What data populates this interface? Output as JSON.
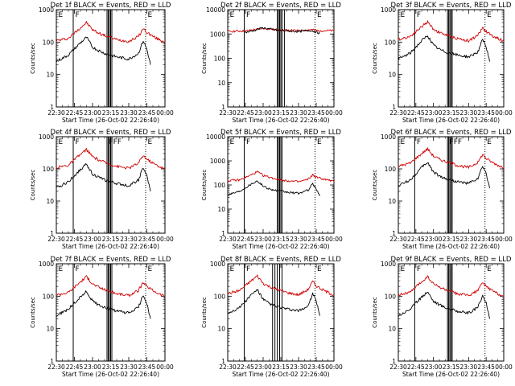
{
  "chart_data": [
    {
      "title": "Det 1f BLACK = Events, RED = LLD",
      "type": "line",
      "xlabel": "Start Time (26-Oct-02 22:26:40)",
      "ylabel": "Counts/sec",
      "yscale": "log",
      "ylim": [
        1,
        1000
      ],
      "xlim": [
        "22:30",
        "00:00"
      ],
      "y_tick_labels": [
        "1",
        "10",
        "100",
        "1000"
      ],
      "x_tick_labels": [
        "22:30",
        "22:45",
        "23:00",
        "23:15",
        "23:30",
        "23:45",
        "00:00"
      ],
      "flags": [
        {
          "text": "E",
          "t": "22:31"
        },
        {
          "text": "F",
          "t": "22:45"
        },
        {
          "text": "E",
          "t": "23:45"
        }
      ],
      "vlines_solid": [
        "22:44",
        "23:12",
        "23:13",
        "23:14",
        "23:15",
        "23:16"
      ],
      "vlines_dotted": [
        "23:44"
      ],
      "series": [
        {
          "color": "#d00000",
          "x": [
            "22:30",
            "22:40",
            "22:50",
            "22:55",
            "23:00",
            "23:05",
            "23:10",
            "23:20",
            "23:30",
            "23:38",
            "23:42",
            "23:45",
            "23:50",
            "23:55",
            "00:00"
          ],
          "y": [
            110,
            130,
            280,
            400,
            240,
            190,
            160,
            120,
            105,
            150,
            260,
            200,
            150,
            120,
            100
          ]
        },
        {
          "color": "#000000",
          "x": [
            "22:30",
            "22:40",
            "22:50",
            "22:55",
            "23:00",
            "23:05",
            "23:10",
            "23:20",
            "23:30",
            "23:38",
            "23:42",
            "23:45",
            "23:48"
          ],
          "y": [
            25,
            40,
            95,
            140,
            70,
            55,
            45,
            35,
            30,
            45,
            110,
            60,
            20
          ]
        }
      ]
    },
    {
      "title": "Det 2f BLACK = Events, RED = LLD",
      "type": "line",
      "xlabel": "Start Time (26-Oct-02 22:26:40)",
      "ylabel": "Counts/sec",
      "yscale": "log",
      "ylim": [
        1,
        10000
      ],
      "xlim": [
        "22:30",
        "00:00"
      ],
      "y_tick_labels": [
        "1",
        "10",
        "100",
        "1000",
        "10000"
      ],
      "x_tick_labels": [
        "22:30",
        "22:45",
        "23:00",
        "23:15",
        "23:30",
        "23:45",
        "00:00"
      ],
      "flags": [
        {
          "text": "E",
          "t": "22:31"
        },
        {
          "text": "F",
          "t": "22:45"
        },
        {
          "text": "E",
          "t": "23:45"
        }
      ],
      "vlines_solid": [
        "22:44",
        "23:12",
        "23:13",
        "23:14",
        "23:15",
        "23:16",
        "23:18"
      ],
      "vlines_dotted": [
        "23:44"
      ],
      "series": [
        {
          "color": "#d00000",
          "x": [
            "22:30",
            "22:45",
            "23:00",
            "23:10",
            "23:30",
            "23:40",
            "23:45",
            "00:00"
          ],
          "y": [
            1300,
            1320,
            1700,
            1500,
            1350,
            1500,
            1400,
            1350
          ]
        },
        {
          "color": "#000000",
          "x": [
            "22:44",
            "22:50",
            "23:00",
            "23:10",
            "23:30",
            "23:40",
            "23:45",
            "23:48"
          ],
          "y": [
            1150,
            1300,
            1800,
            1450,
            1250,
            1400,
            1200,
            1050
          ]
        }
      ]
    },
    {
      "title": "Det 3f BLACK = Events, RED = LLD",
      "type": "line",
      "xlabel": "Start Time (26-Oct-02 22:26:40)",
      "ylabel": "Counts/sec",
      "yscale": "log",
      "ylim": [
        1,
        1000
      ],
      "xlim": [
        "22:30",
        "00:00"
      ],
      "y_tick_labels": [
        "1",
        "10",
        "100",
        "1000"
      ],
      "x_tick_labels": [
        "22:30",
        "22:45",
        "23:00",
        "23:15",
        "23:30",
        "23:45",
        "00:00"
      ],
      "flags": [
        {
          "text": "E",
          "t": "22:31"
        },
        {
          "text": "F",
          "t": "22:45"
        },
        {
          "text": "E",
          "t": "23:45"
        }
      ],
      "vlines_solid": [
        "22:44",
        "23:12",
        "23:13",
        "23:14",
        "23:15",
        "23:16"
      ],
      "vlines_dotted": [
        "23:44"
      ],
      "series": [
        {
          "color": "#d00000",
          "x": [
            "22:30",
            "22:40",
            "22:50",
            "22:55",
            "23:00",
            "23:05",
            "23:10",
            "23:20",
            "23:30",
            "23:38",
            "23:42",
            "23:45",
            "23:50",
            "23:55",
            "00:00"
          ],
          "y": [
            120,
            150,
            300,
            420,
            250,
            200,
            170,
            130,
            110,
            160,
            280,
            210,
            160,
            130,
            110
          ]
        },
        {
          "color": "#000000",
          "x": [
            "22:30",
            "22:40",
            "22:50",
            "22:55",
            "23:00",
            "23:05",
            "23:10",
            "23:20",
            "23:30",
            "23:38",
            "23:42",
            "23:45",
            "23:48"
          ],
          "y": [
            30,
            45,
            110,
            160,
            80,
            60,
            50,
            40,
            35,
            50,
            120,
            70,
            25
          ]
        }
      ]
    },
    {
      "title": "Det 4f BLACK = Events, RED = LLD",
      "type": "line",
      "xlabel": "Start Time (26-Oct-02 22:26:40)",
      "ylabel": "Counts/sec",
      "yscale": "log",
      "ylim": [
        1,
        1000
      ],
      "xlim": [
        "22:30",
        "00:00"
      ],
      "y_tick_labels": [
        "1",
        "10",
        "100",
        "1000"
      ],
      "x_tick_labels": [
        "22:30",
        "22:45",
        "23:00",
        "23:15",
        "23:30",
        "23:45",
        "00:00"
      ],
      "flags": [
        {
          "text": "E",
          "t": "22:31"
        },
        {
          "text": "F",
          "t": "22:45"
        },
        {
          "text": "FFF",
          "t": "23:13"
        },
        {
          "text": "E",
          "t": "23:45"
        }
      ],
      "vlines_solid": [
        "22:44",
        "23:12",
        "23:13",
        "23:14",
        "23:15",
        "23:16"
      ],
      "vlines_dotted": [
        "23:44"
      ],
      "series": [
        {
          "color": "#d00000",
          "x": [
            "22:30",
            "22:40",
            "22:50",
            "22:55",
            "23:00",
            "23:05",
            "23:10",
            "23:20",
            "23:30",
            "23:38",
            "23:42",
            "23:45",
            "23:50",
            "23:55",
            "00:00"
          ],
          "y": [
            110,
            130,
            280,
            400,
            240,
            190,
            160,
            120,
            105,
            150,
            260,
            200,
            150,
            120,
            100
          ]
        },
        {
          "color": "#000000",
          "x": [
            "22:30",
            "22:40",
            "22:50",
            "22:55",
            "23:00",
            "23:05",
            "23:10",
            "23:20",
            "23:30",
            "23:38",
            "23:42",
            "23:45",
            "23:48"
          ],
          "y": [
            25,
            40,
            95,
            140,
            70,
            55,
            45,
            35,
            30,
            45,
            110,
            60,
            20
          ]
        }
      ]
    },
    {
      "title": "Det 5f BLACK = Events, RED = LLD",
      "type": "line",
      "xlabel": "Start Time (26-Oct-02 22:26:40)",
      "ylabel": "Counts/sec",
      "yscale": "log",
      "ylim": [
        1,
        10000
      ],
      "xlim": [
        "22:30",
        "00:00"
      ],
      "y_tick_labels": [
        "1",
        "10",
        "100",
        "1000",
        "10000"
      ],
      "x_tick_labels": [
        "22:30",
        "22:45",
        "23:00",
        "23:15",
        "23:30",
        "23:45",
        "00:00"
      ],
      "flags": [
        {
          "text": "E",
          "t": "22:31"
        },
        {
          "text": "F",
          "t": "22:45"
        },
        {
          "text": "E",
          "t": "23:45"
        }
      ],
      "vlines_solid": [
        "22:44",
        "23:12",
        "23:13",
        "23:14",
        "23:15",
        "23:16"
      ],
      "vlines_dotted": [
        "23:44"
      ],
      "series": [
        {
          "color": "#d00000",
          "x": [
            "22:30",
            "22:40",
            "22:50",
            "22:55",
            "23:00",
            "23:05",
            "23:10",
            "23:20",
            "23:30",
            "23:38",
            "23:42",
            "23:45",
            "23:50",
            "23:55",
            "00:00"
          ],
          "y": [
            150,
            160,
            260,
            350,
            250,
            210,
            180,
            150,
            135,
            170,
            260,
            210,
            180,
            160,
            140
          ]
        },
        {
          "color": "#000000",
          "x": [
            "22:30",
            "22:40",
            "22:50",
            "22:55",
            "23:00",
            "23:05",
            "23:10",
            "23:20",
            "23:30",
            "23:38",
            "23:42",
            "23:45",
            "23:48"
          ],
          "y": [
            40,
            55,
            110,
            150,
            90,
            70,
            60,
            50,
            45,
            60,
            110,
            70,
            35
          ]
        }
      ]
    },
    {
      "title": "Det 6f BLACK = Events, RED = LLD",
      "type": "line",
      "xlabel": "Start Time (26-Oct-02 22:26:40)",
      "ylabel": "Counts/sec",
      "yscale": "log",
      "ylim": [
        1,
        1000
      ],
      "xlim": [
        "22:30",
        "00:00"
      ],
      "y_tick_labels": [
        "1",
        "10",
        "100",
        "1000"
      ],
      "x_tick_labels": [
        "22:30",
        "22:45",
        "23:00",
        "23:15",
        "23:30",
        "23:45",
        "00:00"
      ],
      "flags": [
        {
          "text": "E",
          "t": "22:31"
        },
        {
          "text": "F",
          "t": "22:45"
        },
        {
          "text": "FFF",
          "t": "23:13"
        },
        {
          "text": "E",
          "t": "23:45"
        }
      ],
      "vlines_solid": [
        "22:44",
        "23:12",
        "23:13",
        "23:14",
        "23:15",
        "23:16"
      ],
      "vlines_dotted": [
        "23:44"
      ],
      "series": [
        {
          "color": "#d00000",
          "x": [
            "22:30",
            "22:40",
            "22:50",
            "22:55",
            "23:00",
            "23:05",
            "23:10",
            "23:20",
            "23:30",
            "23:38",
            "23:42",
            "23:45",
            "23:50",
            "23:55",
            "00:00"
          ],
          "y": [
            120,
            150,
            300,
            420,
            250,
            200,
            170,
            130,
            110,
            160,
            280,
            210,
            160,
            130,
            110
          ]
        },
        {
          "color": "#000000",
          "x": [
            "22:30",
            "22:40",
            "22:50",
            "22:55",
            "23:00",
            "23:05",
            "23:10",
            "23:20",
            "23:30",
            "23:38",
            "23:42",
            "23:45",
            "23:48"
          ],
          "y": [
            30,
            45,
            110,
            160,
            80,
            60,
            50,
            40,
            35,
            50,
            120,
            70,
            25
          ]
        }
      ]
    },
    {
      "title": "Det 7f BLACK = Events, RED = LLD",
      "type": "line",
      "xlabel": "Start Time (26-Oct-02 22:26:40)",
      "ylabel": "Counts/sec",
      "yscale": "log",
      "ylim": [
        1,
        1000
      ],
      "xlim": [
        "22:30",
        "00:00"
      ],
      "y_tick_labels": [
        "1",
        "10",
        "100",
        "1000"
      ],
      "x_tick_labels": [
        "22:30",
        "22:45",
        "23:00",
        "23:15",
        "23:30",
        "23:45",
        "00:00"
      ],
      "flags": [
        {
          "text": "E",
          "t": "22:31"
        },
        {
          "text": "F",
          "t": "22:45"
        },
        {
          "text": "E",
          "t": "23:45"
        }
      ],
      "vlines_solid": [
        "22:44",
        "23:12",
        "23:13",
        "23:14",
        "23:15",
        "23:16"
      ],
      "vlines_dotted": [
        "23:44"
      ],
      "series": [
        {
          "color": "#d00000",
          "x": [
            "22:30",
            "22:40",
            "22:50",
            "22:55",
            "23:00",
            "23:05",
            "23:10",
            "23:20",
            "23:30",
            "23:38",
            "23:42",
            "23:45",
            "23:50",
            "23:55",
            "00:00"
          ],
          "y": [
            110,
            130,
            280,
            400,
            240,
            190,
            160,
            120,
            105,
            150,
            260,
            200,
            150,
            120,
            100
          ]
        },
        {
          "color": "#000000",
          "x": [
            "22:30",
            "22:40",
            "22:50",
            "22:55",
            "23:00",
            "23:05",
            "23:10",
            "23:20",
            "23:30",
            "23:38",
            "23:42",
            "23:45",
            "23:48"
          ],
          "y": [
            25,
            40,
            95,
            140,
            70,
            55,
            45,
            35,
            30,
            45,
            110,
            60,
            20
          ]
        }
      ]
    },
    {
      "title": "Det 8f BLACK = Events, RED = LLD",
      "type": "line",
      "xlabel": "Start Time (26-Oct-02 22:26:40)",
      "ylabel": "Counts/sec",
      "yscale": "log",
      "ylim": [
        1,
        1000
      ],
      "xlim": [
        "22:30",
        "00:00"
      ],
      "y_tick_labels": [
        "1",
        "10",
        "100",
        "1000"
      ],
      "x_tick_labels": [
        "22:30",
        "22:45",
        "23:00",
        "23:15",
        "23:30",
        "23:45",
        "00:00"
      ],
      "flags": [
        {
          "text": "E",
          "t": "22:31"
        },
        {
          "text": "F",
          "t": "22:45"
        },
        {
          "text": "E",
          "t": "23:45"
        }
      ],
      "vlines_solid": [
        "22:44",
        "23:08",
        "23:10",
        "23:12",
        "23:14",
        "23:16"
      ],
      "vlines_dotted": [
        "23:44"
      ],
      "series": [
        {
          "color": "#d00000",
          "x": [
            "22:30",
            "22:40",
            "22:50",
            "22:55",
            "23:00",
            "23:05",
            "23:10",
            "23:20",
            "23:30",
            "23:38",
            "23:42",
            "23:45",
            "23:50",
            "23:55",
            "00:00"
          ],
          "y": [
            120,
            150,
            300,
            420,
            250,
            200,
            170,
            130,
            110,
            160,
            280,
            210,
            160,
            130,
            110
          ]
        },
        {
          "color": "#000000",
          "x": [
            "22:30",
            "22:40",
            "22:50",
            "22:55",
            "23:00",
            "23:05",
            "23:10",
            "23:20",
            "23:30",
            "23:38",
            "23:42",
            "23:45",
            "23:48"
          ],
          "y": [
            30,
            45,
            110,
            160,
            80,
            60,
            50,
            40,
            35,
            50,
            120,
            70,
            25
          ]
        }
      ]
    },
    {
      "title": "Det 9f BLACK = Events, RED = LLD",
      "type": "line",
      "xlabel": "Start Time (26-Oct-02 22:26:40)",
      "ylabel": "Counts/sec",
      "yscale": "log",
      "ylim": [
        1,
        1000
      ],
      "xlim": [
        "22:30",
        "00:00"
      ],
      "y_tick_labels": [
        "1",
        "10",
        "100",
        "1000"
      ],
      "x_tick_labels": [
        "22:30",
        "22:45",
        "23:00",
        "23:15",
        "23:30",
        "23:45",
        "00:00"
      ],
      "flags": [
        {
          "text": "E",
          "t": "22:31"
        },
        {
          "text": "F",
          "t": "22:45"
        },
        {
          "text": "E",
          "t": "23:45"
        }
      ],
      "vlines_solid": [
        "22:44",
        "23:12",
        "23:13",
        "23:14",
        "23:15",
        "23:16"
      ],
      "vlines_dotted": [
        "23:44"
      ],
      "series": [
        {
          "color": "#d00000",
          "x": [
            "22:30",
            "22:40",
            "22:50",
            "22:55",
            "23:00",
            "23:05",
            "23:10",
            "23:20",
            "23:30",
            "23:38",
            "23:42",
            "23:45",
            "23:50",
            "23:55",
            "00:00"
          ],
          "y": [
            110,
            130,
            280,
            400,
            240,
            190,
            160,
            120,
            105,
            150,
            260,
            200,
            150,
            120,
            100
          ]
        },
        {
          "color": "#000000",
          "x": [
            "22:30",
            "22:40",
            "22:50",
            "22:55",
            "23:00",
            "23:05",
            "23:10",
            "23:20",
            "23:30",
            "23:38",
            "23:42",
            "23:45",
            "23:48"
          ],
          "y": [
            25,
            40,
            95,
            140,
            70,
            55,
            45,
            35,
            30,
            45,
            110,
            60,
            20
          ]
        }
      ]
    }
  ]
}
